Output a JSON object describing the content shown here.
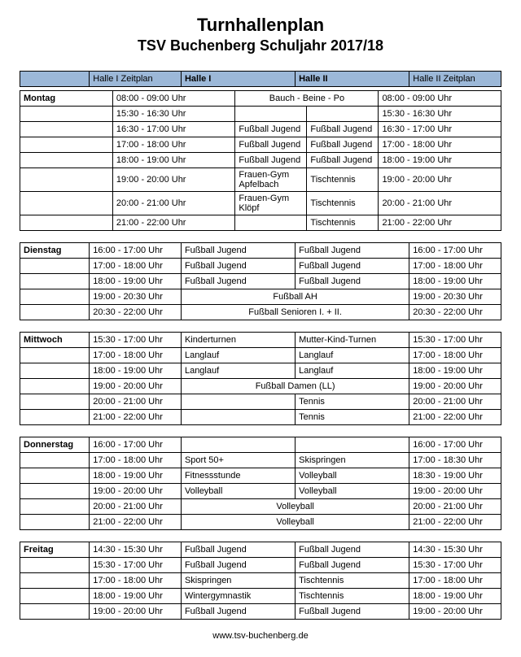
{
  "title": "Turnhallenplan",
  "subtitle": "TSV Buchenberg  Schuljahr 2017/18",
  "footer": "www.tsv-buchenberg.de",
  "header_bg": "#9cb8d8",
  "columns": [
    "",
    "Halle I Zeitplan",
    "Halle I",
    "Halle II",
    "Halle II Zeitplan"
  ],
  "days": {
    "montag": {
      "name": "Montag",
      "rows": [
        {
          "t1": "08:00 - 09:00 Uhr",
          "a": "Bauch - Beine - Po",
          "span": true,
          "t2": "08:00 - 09:00 Uhr"
        },
        {
          "t1": "15:30 - 16:30 Uhr",
          "a": "",
          "b": "",
          "t2": "15:30 - 16:30 Uhr"
        },
        {
          "t1": "16:30 - 17:00 Uhr",
          "a": "Fußball Jugend",
          "b": "Fußball Jugend",
          "t2": "16:30 - 17:00 Uhr"
        },
        {
          "t1": "17:00 - 18:00 Uhr",
          "a": "Fußball Jugend",
          "b": "Fußball Jugend",
          "t2": "17:00 - 18:00 Uhr"
        },
        {
          "t1": "18:00 - 19:00 Uhr",
          "a": "Fußball Jugend",
          "b": "Fußball Jugend",
          "t2": "18:00 - 19:00 Uhr"
        },
        {
          "t1": "19:00 - 20:00 Uhr",
          "a": "Frauen-Gym Apfelbach",
          "b": "Tischtennis",
          "t2": "19:00 - 20:00 Uhr"
        },
        {
          "t1": "20:00 - 21:00 Uhr",
          "a": "Frauen-Gym Klöpf",
          "b": "Tischtennis",
          "t2": "20:00 - 21:00 Uhr"
        },
        {
          "t1": "21:00 - 22:00 Uhr",
          "a": "",
          "b": "Tischtennis",
          "t2": "21:00 - 22:00 Uhr"
        }
      ]
    },
    "dienstag": {
      "name": "Dienstag",
      "rows": [
        {
          "t1": "16:00 - 17:00 Uhr",
          "a": "Fußball Jugend",
          "b": "Fußball Jugend",
          "t2": "16:00 - 17:00 Uhr"
        },
        {
          "t1": "17:00 - 18:00 Uhr",
          "a": "Fußball Jugend",
          "b": "Fußball Jugend",
          "t2": "17:00 - 18:00 Uhr"
        },
        {
          "t1": "18:00 - 19:00 Uhr",
          "a": "Fußball Jugend",
          "b": "Fußball Jugend",
          "t2": "18:00 - 19:00 Uhr"
        },
        {
          "t1": "19:00 - 20:30 Uhr",
          "a": "Fußball AH",
          "span": true,
          "t2": "19:00 - 20:30 Uhr"
        },
        {
          "t1": "20:30 - 22:00 Uhr",
          "a": "Fußball Senioren I. + II.",
          "span": true,
          "t2": "20:30 - 22:00 Uhr"
        }
      ]
    },
    "mittwoch": {
      "name": "Mittwoch",
      "rows": [
        {
          "t1": "15:30 - 17:00 Uhr",
          "a": "Kinderturnen",
          "b": "Mutter-Kind-Turnen",
          "t2": "15:30 - 17:00 Uhr"
        },
        {
          "t1": "17:00 - 18:00 Uhr",
          "a": "Langlauf",
          "b": "Langlauf",
          "t2": "17:00 - 18:00 Uhr"
        },
        {
          "t1": "18:00 - 19:00 Uhr",
          "a": "Langlauf",
          "b": "Langlauf",
          "t2": "18:00 - 19:00 Uhr"
        },
        {
          "t1": "19:00 - 20:00 Uhr",
          "a": "Fußball Damen (LL)",
          "span": true,
          "t2": "19:00 - 20:00 Uhr"
        },
        {
          "t1": "20:00 - 21:00 Uhr",
          "a": "",
          "b": "Tennis",
          "t2": "20:00 - 21:00 Uhr"
        },
        {
          "t1": "21:00 - 22:00 Uhr",
          "a": "",
          "b": "Tennis",
          "t2": "21:00 - 22:00 Uhr"
        }
      ]
    },
    "donnerstag": {
      "name": "Donnerstag",
      "rows": [
        {
          "t1": "16:00 - 17:00 Uhr",
          "a": "",
          "b": "",
          "t2": "16:00 - 17:00 Uhr"
        },
        {
          "t1": "17:00 - 18:00 Uhr",
          "a": "Sport 50+",
          "b": "Skispringen",
          "t2": "17:00 - 18:30 Uhr"
        },
        {
          "t1": "18:00 - 19:00 Uhr",
          "a": "Fitnessstunde",
          "b": "Volleyball",
          "t2": "18:30 - 19:00 Uhr"
        },
        {
          "t1": "19:00 - 20:00 Uhr",
          "a": "Volleyball",
          "b": "Volleyball",
          "t2": "19:00 - 20:00 Uhr"
        },
        {
          "t1": "20:00 - 21:00 Uhr",
          "a": "Volleyball",
          "span": true,
          "t2": "20:00 - 21:00 Uhr"
        },
        {
          "t1": "21:00 - 22:00 Uhr",
          "a": "Volleyball",
          "span": true,
          "t2": "21:00 - 22:00 Uhr"
        }
      ]
    },
    "freitag": {
      "name": "Freitag",
      "rows": [
        {
          "t1": "14:30 - 15:30 Uhr",
          "a": "Fußball Jugend",
          "b": "Fußball Jugend",
          "t2": "14:30 - 15:30 Uhr"
        },
        {
          "t1": "15:30 - 17:00 Uhr",
          "a": "Fußball Jugend",
          "b": "Fußball Jugend",
          "t2": "15:30 - 17:00 Uhr"
        },
        {
          "t1": "17:00 - 18:00 Uhr",
          "a": "Skispringen",
          "b": "Tischtennis",
          "t2": "17:00 - 18:00 Uhr"
        },
        {
          "t1": "18:00 - 19:00 Uhr",
          "a": "Wintergymnastik",
          "b": "Tischtennis",
          "t2": "18:00 - 19:00 Uhr"
        },
        {
          "t1": "19:00 - 20:00 Uhr",
          "a": "Fußball Jugend",
          "b": "Fußball Jugend",
          "t2": "19:00 - 20:00 Uhr"
        }
      ]
    }
  }
}
